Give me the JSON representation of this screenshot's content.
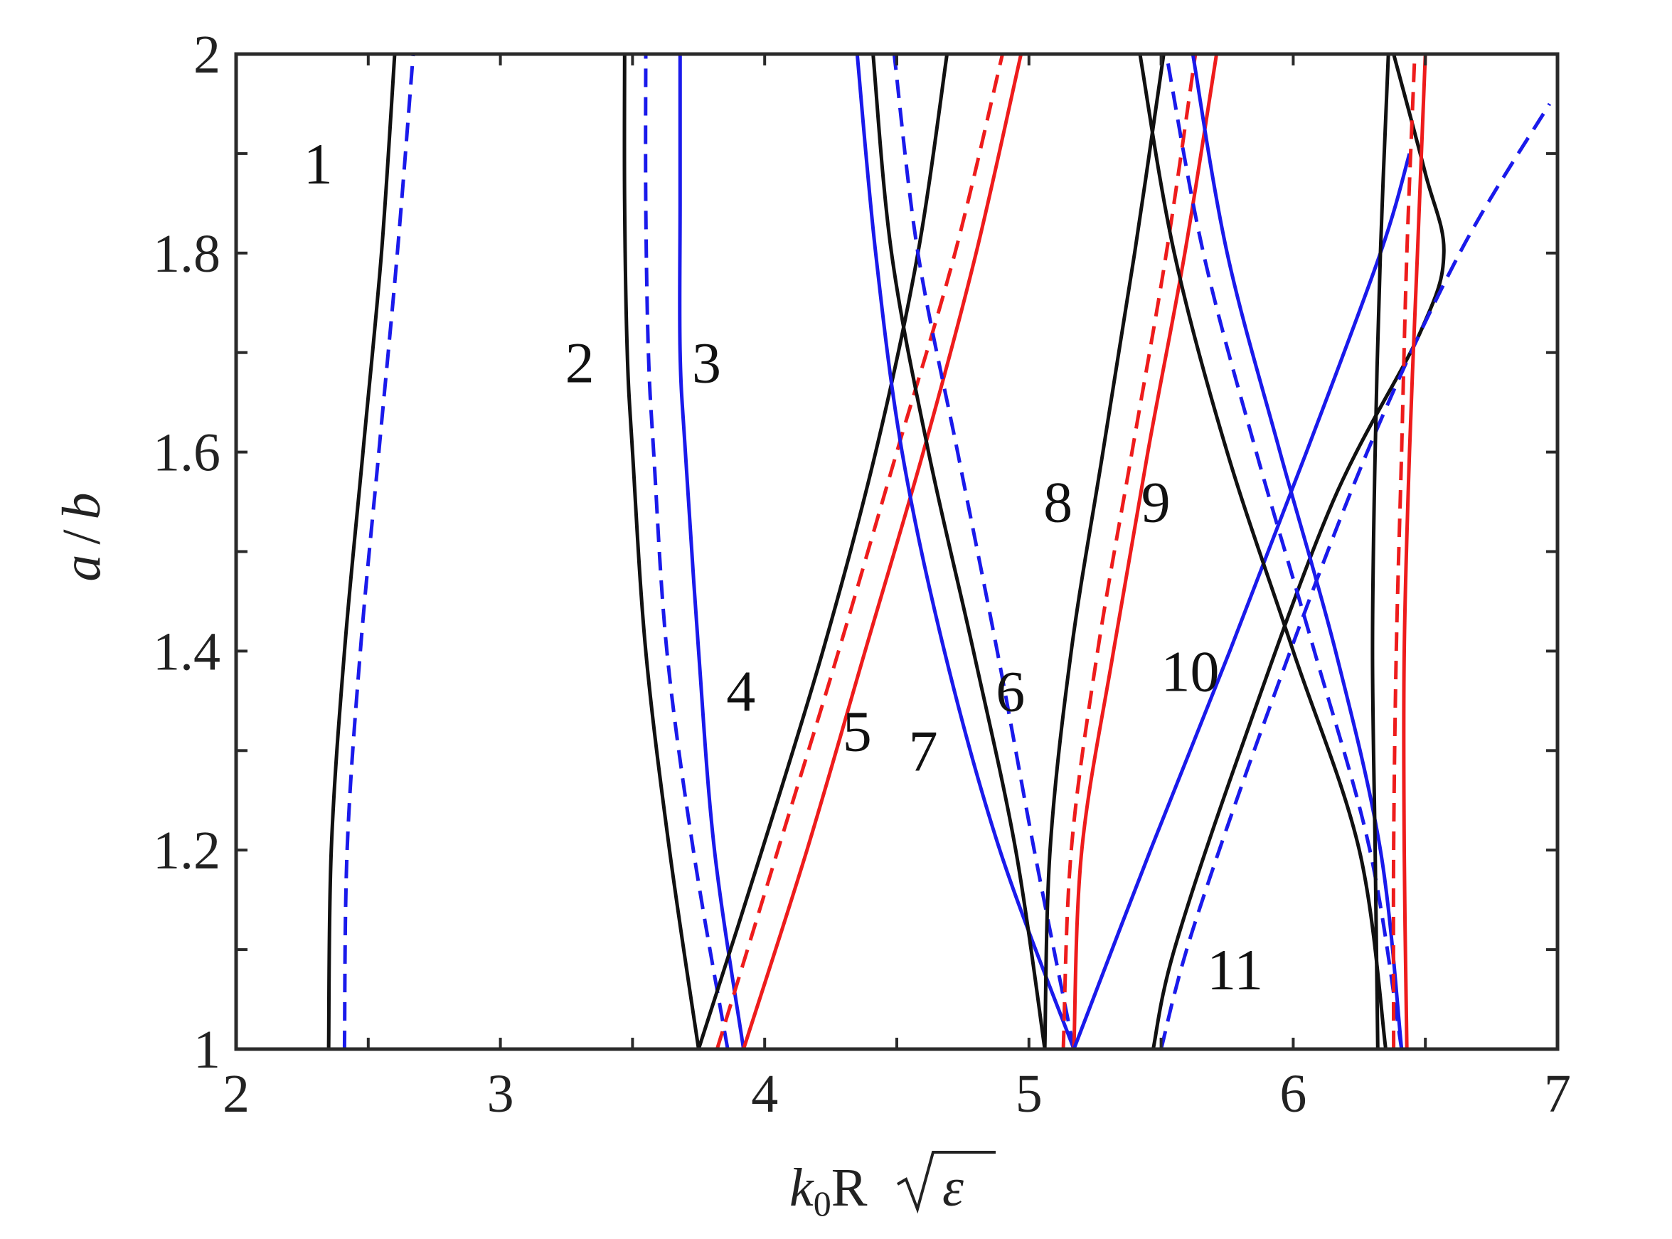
{
  "chart_data": {
    "type": "line",
    "title": "",
    "xlabel": {
      "k": "k",
      "sub": "0",
      "R": "R",
      "eps": "ε"
    },
    "ylabel": {
      "a": "a",
      "slash": "/",
      "b": "b"
    },
    "xlim": [
      2,
      7
    ],
    "ylim": [
      1,
      2
    ],
    "xticks": [
      2,
      3,
      4,
      5,
      6,
      7
    ],
    "yticks": [
      1,
      1.2,
      1.4,
      1.6,
      1.8,
      2
    ],
    "xtick_labels": [
      "2",
      "3",
      "4",
      "5",
      "6",
      "7"
    ],
    "ytick_labels": [
      "1",
      "1.2",
      "1.4",
      "1.6",
      "1.8",
      "2"
    ],
    "grid": false,
    "colors": {
      "black": "#111111",
      "blue": "#1a1aeb",
      "red": "#ee1c1c"
    },
    "series": [
      {
        "color": "black",
        "dash": false,
        "x": [
          2.35,
          2.36,
          2.41,
          2.48,
          2.55,
          2.6
        ],
        "y": [
          1,
          1.2,
          1.4,
          1.6,
          1.8,
          2
        ]
      },
      {
        "color": "blue",
        "dash": true,
        "x": [
          2.41,
          2.42,
          2.47,
          2.54,
          2.61,
          2.67
        ],
        "y": [
          1,
          1.2,
          1.4,
          1.6,
          1.8,
          2
        ]
      },
      {
        "color": "black",
        "dash": false,
        "x": [
          3.75,
          3.64,
          3.55,
          3.5,
          3.48,
          3.47,
          3.47
        ],
        "y": [
          1,
          1.2,
          1.4,
          1.6,
          1.7,
          1.85,
          2
        ]
      },
      {
        "color": "blue",
        "dash": true,
        "x": [
          3.86,
          3.73,
          3.63,
          3.58,
          3.56,
          3.55,
          3.55
        ],
        "y": [
          1,
          1.2,
          1.4,
          1.6,
          1.7,
          1.85,
          2
        ]
      },
      {
        "color": "blue",
        "dash": false,
        "x": [
          3.92,
          3.81,
          3.75,
          3.7,
          3.68,
          3.68,
          3.68
        ],
        "y": [
          1,
          1.2,
          1.4,
          1.6,
          1.7,
          1.85,
          2
        ]
      },
      {
        "color": "black",
        "dash": false,
        "x": [
          3.75,
          3.99,
          4.22,
          4.42,
          4.58,
          4.69
        ],
        "y": [
          1,
          1.2,
          1.4,
          1.6,
          1.8,
          2
        ]
      },
      {
        "color": "red",
        "dash": true,
        "x": [
          3.82,
          4.05,
          4.28,
          4.5,
          4.72,
          4.9
        ],
        "y": [
          1,
          1.2,
          1.4,
          1.6,
          1.8,
          2
        ]
      },
      {
        "color": "red",
        "dash": false,
        "x": [
          3.92,
          4.16,
          4.38,
          4.6,
          4.8,
          4.97
        ],
        "y": [
          1,
          1.2,
          1.4,
          1.6,
          1.8,
          2
        ]
      },
      {
        "color": "blue",
        "dash": false,
        "x": [
          5.17,
          4.89,
          4.68,
          4.52,
          4.42,
          4.35
        ],
        "y": [
          1,
          1.2,
          1.4,
          1.6,
          1.8,
          2
        ]
      },
      {
        "color": "blue",
        "dash": true,
        "x": [
          5.17,
          5.02,
          4.88,
          4.73,
          4.58,
          4.49
        ],
        "y": [
          1,
          1.2,
          1.4,
          1.6,
          1.8,
          2
        ]
      },
      {
        "color": "black",
        "dash": false,
        "x": [
          5.06,
          4.95,
          4.79,
          4.62,
          4.48,
          4.41
        ],
        "y": [
          1,
          1.2,
          1.4,
          1.6,
          1.8,
          2
        ]
      },
      {
        "color": "black",
        "dash": false,
        "x": [
          5.06,
          5.08,
          5.16,
          5.28,
          5.4,
          5.51
        ],
        "y": [
          1,
          1.2,
          1.4,
          1.6,
          1.8,
          2
        ]
      },
      {
        "color": "red",
        "dash": true,
        "x": [
          5.13,
          5.16,
          5.26,
          5.39,
          5.52,
          5.63
        ],
        "y": [
          1,
          1.2,
          1.4,
          1.6,
          1.8,
          2
        ]
      },
      {
        "color": "red",
        "dash": false,
        "x": [
          5.17,
          5.2,
          5.32,
          5.45,
          5.59,
          5.71
        ],
        "y": [
          1,
          1.2,
          1.4,
          1.6,
          1.8,
          2
        ]
      },
      {
        "color": "blue",
        "dash": false,
        "x": [
          5.17,
          5.46,
          5.76,
          6.05,
          6.33,
          6.44
        ],
        "y": [
          1,
          1.2,
          1.4,
          1.6,
          1.8,
          1.9
        ]
      },
      {
        "color": "black",
        "dash": false,
        "x": [
          5.47,
          5.55,
          5.8,
          6.15,
          6.48,
          6.57,
          6.5,
          6.38
        ],
        "y": [
          1,
          1.1,
          1.3,
          1.55,
          1.72,
          1.8,
          1.88,
          2
        ]
      },
      {
        "color": "blue",
        "dash": true,
        "x": [
          5.5,
          5.62,
          5.92,
          6.28,
          6.63,
          6.97
        ],
        "y": [
          1,
          1.12,
          1.35,
          1.6,
          1.8,
          1.95
        ]
      },
      {
        "color": "black",
        "dash": false,
        "x": [
          6.35,
          6.25,
          6.0,
          5.75,
          5.55,
          5.42
        ],
        "y": [
          1,
          1.2,
          1.4,
          1.6,
          1.8,
          2
        ]
      },
      {
        "color": "blue",
        "dash": true,
        "x": [
          6.41,
          6.29,
          6.08,
          5.86,
          5.66,
          5.52
        ],
        "y": [
          1,
          1.2,
          1.4,
          1.6,
          1.8,
          2
        ]
      },
      {
        "color": "blue",
        "dash": false,
        "x": [
          6.41,
          6.33,
          6.16,
          5.95,
          5.75,
          5.62
        ],
        "y": [
          1,
          1.2,
          1.4,
          1.6,
          1.8,
          2
        ]
      },
      {
        "color": "black",
        "dash": false,
        "x": [
          6.32,
          6.31,
          6.3,
          6.31,
          6.33,
          6.36
        ],
        "y": [
          1,
          1.2,
          1.4,
          1.6,
          1.8,
          2
        ]
      },
      {
        "color": "red",
        "dash": true,
        "x": [
          6.38,
          6.38,
          6.39,
          6.41,
          6.43,
          6.46
        ],
        "y": [
          1,
          1.2,
          1.4,
          1.6,
          1.8,
          2
        ]
      },
      {
        "color": "red",
        "dash": false,
        "x": [
          6.43,
          6.42,
          6.42,
          6.44,
          6.47,
          6.5
        ],
        "y": [
          1,
          1.2,
          1.4,
          1.6,
          1.8,
          2
        ]
      }
    ],
    "annotations": [
      {
        "text": "1",
        "x": 2.31,
        "y": 1.87
      },
      {
        "text": "2",
        "x": 3.3,
        "y": 1.67
      },
      {
        "text": "3",
        "x": 3.78,
        "y": 1.67
      },
      {
        "text": "4",
        "x": 3.91,
        "y": 1.34
      },
      {
        "text": "5",
        "x": 4.35,
        "y": 1.3
      },
      {
        "text": "7",
        "x": 4.6,
        "y": 1.28
      },
      {
        "text": "6",
        "x": 4.93,
        "y": 1.34
      },
      {
        "text": "8",
        "x": 5.11,
        "y": 1.53
      },
      {
        "text": "9",
        "x": 5.48,
        "y": 1.53
      },
      {
        "text": "10",
        "x": 5.61,
        "y": 1.36
      },
      {
        "text": "11",
        "x": 5.78,
        "y": 1.06
      }
    ]
  }
}
